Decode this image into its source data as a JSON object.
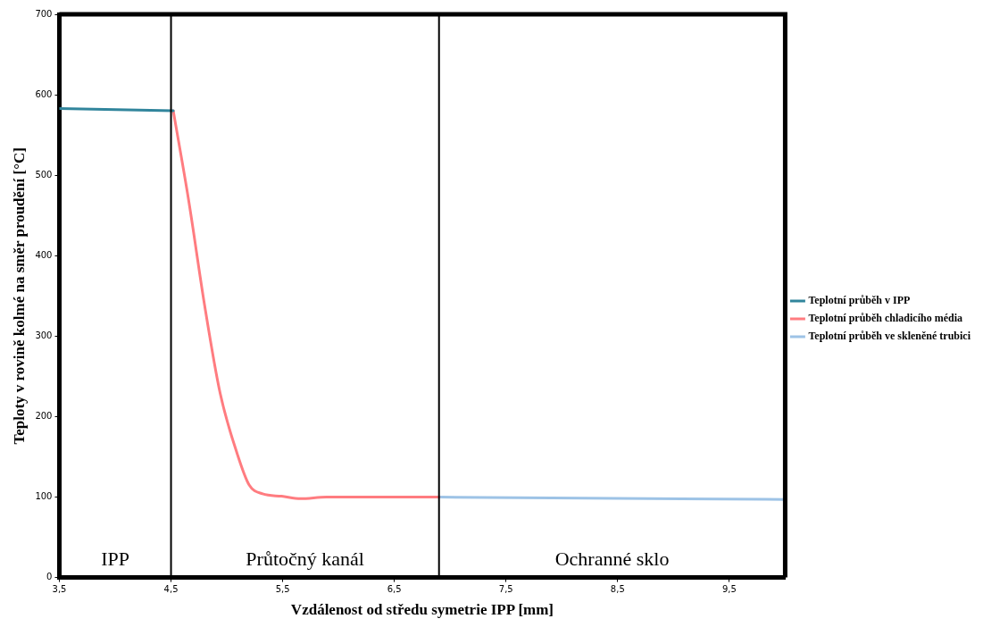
{
  "chart_data": {
    "type": "line",
    "xlabel": "Vzdálenost od středu symetrie IPP [mm]",
    "ylabel": "Teploty v rovině kolmé na směr proudění [°C]",
    "xlim": [
      3.5,
      10
    ],
    "xticks": [
      {
        "value": 3.5,
        "label": "3,5"
      },
      {
        "value": 4.5,
        "label": "4,5"
      },
      {
        "value": 5.5,
        "label": "5,5"
      },
      {
        "value": 6.5,
        "label": "6,5"
      },
      {
        "value": 7.5,
        "label": "7,5"
      },
      {
        "value": 8.5,
        "label": "8,5"
      },
      {
        "value": 9.5,
        "label": "9,5"
      }
    ],
    "ylim": [
      0,
      700
    ],
    "yticks": [
      0,
      100,
      200,
      300,
      400,
      500,
      600,
      700
    ],
    "series": [
      {
        "name": "Teplotní průběh v IPP",
        "color": "#31859c",
        "x": [
          3.5,
          4.52
        ],
        "values": [
          583,
          580
        ]
      },
      {
        "name": "Teplotní průběh chladicího média",
        "color": "#ff7c80",
        "x": [
          4.52,
          4.66,
          4.8,
          4.94,
          5.09,
          5.2,
          5.32,
          5.49,
          5.66,
          5.89,
          6.9
        ],
        "values": [
          580,
          467,
          339,
          229,
          155,
          115,
          104,
          101,
          98,
          100,
          100
        ]
      },
      {
        "name": "Teplotní průběh ve skleněné trubici",
        "color": "#9dc3e6",
        "x": [
          6.9,
          10
        ],
        "values": [
          100,
          97
        ]
      }
    ],
    "ref_lines": [
      {
        "axis": "x",
        "value": 4.5,
        "color": "#000000"
      },
      {
        "axis": "x",
        "value": 6.9,
        "color": "#000000"
      }
    ],
    "annotations": [
      "IPP",
      "Průtočný kanál",
      "Ochranné sklo"
    ],
    "grid": false,
    "legend": "right",
    "marker": "none",
    "line_style": "solid"
  }
}
